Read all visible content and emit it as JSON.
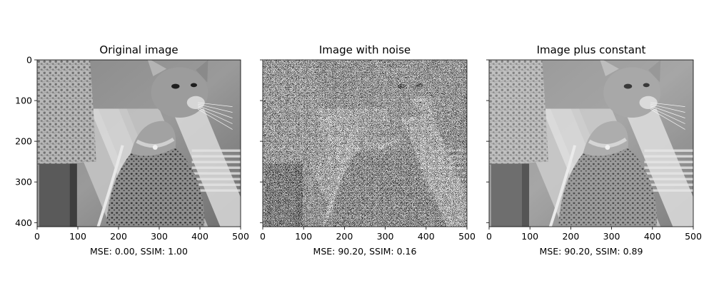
{
  "figure": {
    "background": "#ffffff",
    "axis_color": "#000000"
  },
  "chart_data": [
    {
      "type": "image",
      "title": "Original image",
      "xlabel": "MSE: 0.00, SSIM: 1.00",
      "xlim": [
        0,
        500
      ],
      "ylim": [
        410,
        0
      ],
      "xticks": [
        0,
        100,
        200,
        300,
        400,
        500
      ],
      "yticks": [
        0,
        100,
        200,
        300,
        400
      ],
      "show_ytick_labels": true,
      "colormap": "gray",
      "image_style": "plain",
      "metrics": {
        "mse": 0.0,
        "ssim": 1.0
      }
    },
    {
      "type": "image",
      "title": "Image with noise",
      "xlabel": "MSE: 90.20, SSIM: 0.16",
      "xlim": [
        0,
        500
      ],
      "ylim": [
        410,
        0
      ],
      "xticks": [
        0,
        100,
        200,
        300,
        400,
        500
      ],
      "yticks": [
        0,
        100,
        200,
        300,
        400
      ],
      "show_ytick_labels": false,
      "colormap": "gray",
      "image_style": "noise",
      "metrics": {
        "mse": 90.2,
        "ssim": 0.16
      }
    },
    {
      "type": "image",
      "title": "Image plus constant",
      "xlabel": "MSE: 90.20, SSIM: 0.89",
      "xlim": [
        0,
        500
      ],
      "ylim": [
        410,
        0
      ],
      "xticks": [
        0,
        100,
        200,
        300,
        400,
        500
      ],
      "yticks": [
        0,
        100,
        200,
        300,
        400
      ],
      "show_ytick_labels": false,
      "colormap": "gray",
      "image_style": "bright",
      "metrics": {
        "mse": 90.2,
        "ssim": 0.89
      }
    }
  ]
}
